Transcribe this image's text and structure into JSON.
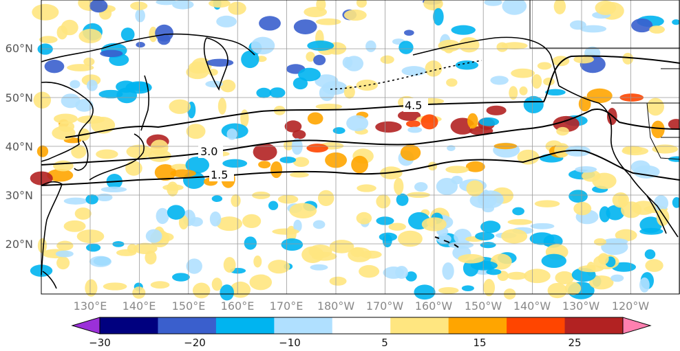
{
  "map": {
    "lat_labels": [
      "60°N",
      "50°N",
      "40°N",
      "30°N",
      "20°N"
    ],
    "lon_labels": [
      "130°E",
      "140°E",
      "150°E",
      "160°E",
      "170°E",
      "180°W",
      "170°W",
      "160°W",
      "150°W",
      "140°W",
      "130°W",
      "120°W"
    ],
    "contour_labels": [
      "4.5",
      "3.0",
      "1.5"
    ],
    "colorbar": {
      "ticks": [
        "−30",
        "−20",
        "−10",
        "5",
        "15",
        "25"
      ],
      "colors": [
        "#9b30d9",
        "#00007f",
        "#3a5fcd",
        "#00b4f0",
        "#b0e0ff",
        "#ffffff",
        "#ffe680",
        "#ffa500",
        "#ff4500",
        "#b22222",
        "#ff80b0"
      ]
    },
    "colors": {
      "land_outline": "#000000",
      "grid": "#999999",
      "contour": "#000000"
    }
  }
}
